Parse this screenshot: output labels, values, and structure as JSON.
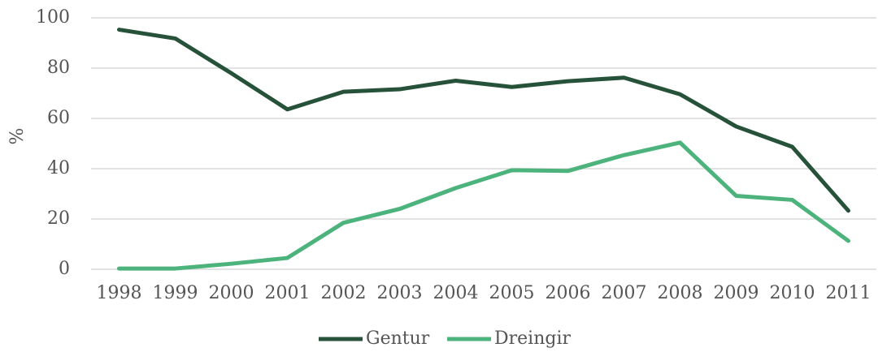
{
  "chart_data": {
    "type": "line",
    "y_label": "%",
    "categories": [
      "1998",
      "1999",
      "2000",
      "2001",
      "2002",
      "2003",
      "2004",
      "2005",
      "2006",
      "2007",
      "2008",
      "2009",
      "2010",
      "2011"
    ],
    "series": [
      {
        "name": "Gentur",
        "color": "#27523a",
        "values": [
          95.3,
          91.8,
          78,
          63.6,
          70.6,
          71.6,
          75,
          72.5,
          74.8,
          76.2,
          69.6,
          56.8,
          48.7,
          23.3
        ]
      },
      {
        "name": "Dreingir",
        "color": "#4db37c",
        "values": [
          0.3,
          0.3,
          2.2,
          4.5,
          18.5,
          24,
          32.3,
          39.4,
          39.1,
          45.4,
          50.4,
          29.2,
          27.6,
          11.3
        ]
      }
    ],
    "ylim": [
      0,
      100
    ],
    "yticks": [
      0,
      20,
      40,
      60,
      80,
      100
    ],
    "grid": true,
    "legend": "bottom"
  }
}
